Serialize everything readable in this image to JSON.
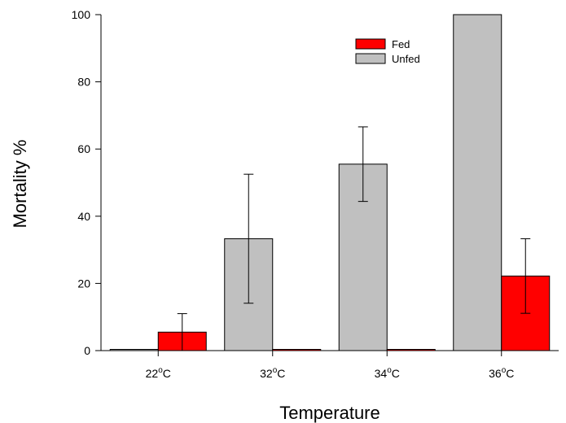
{
  "chart_data": {
    "type": "bar",
    "categories": [
      {
        "value": "22",
        "sup": "o",
        "unit": "C"
      },
      {
        "value": "32",
        "sup": "o",
        "unit": "C"
      },
      {
        "value": "34",
        "sup": "o",
        "unit": "C"
      },
      {
        "value": "36",
        "sup": "o",
        "unit": "C"
      }
    ],
    "series": [
      {
        "name": "Unfed",
        "color": "#c0c0c0",
        "values": [
          0,
          33.3,
          55.5,
          100
        ],
        "errors": [
          0,
          19.2,
          11.1,
          0
        ]
      },
      {
        "name": "Fed",
        "color": "#ff0000",
        "values": [
          5.5,
          0,
          0,
          22.2
        ],
        "errors": [
          5.5,
          0,
          0,
          11.1
        ]
      }
    ],
    "legend_order": [
      "Fed",
      "Unfed"
    ],
    "legend_position": "top-right",
    "xlabel": "Temperature",
    "ylabel": "Mortality %",
    "ylim": [
      0,
      100
    ],
    "yticks": [
      0,
      20,
      40,
      60,
      80,
      100
    ],
    "grid": false
  }
}
